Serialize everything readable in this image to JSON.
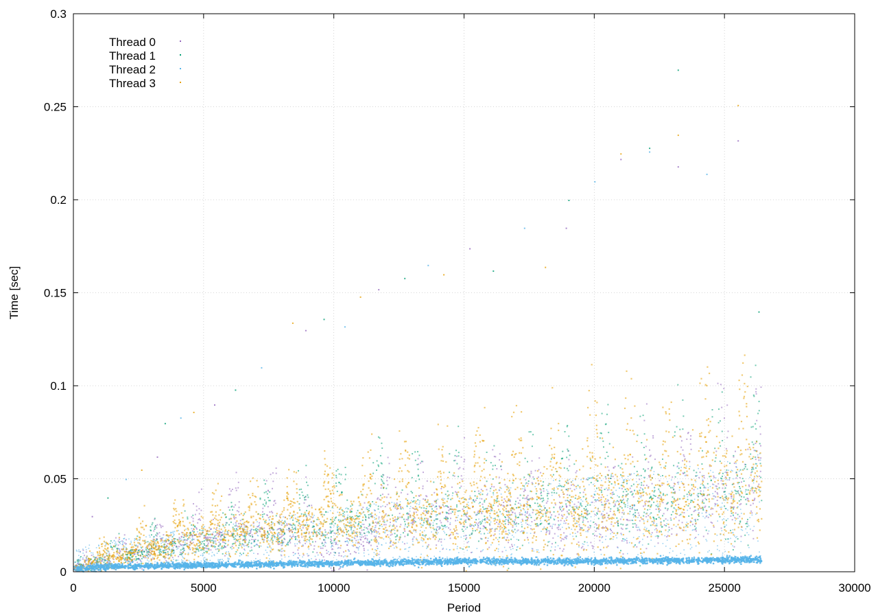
{
  "chart_data": {
    "type": "scatter",
    "title": "",
    "xlabel": "Period",
    "ylabel": "Time [sec]",
    "xlim": [
      0,
      30000
    ],
    "ylim": [
      0,
      0.3
    ],
    "x_ticks": [
      0,
      5000,
      10000,
      15000,
      20000,
      25000,
      30000
    ],
    "x_tick_labels": [
      "0",
      "5000",
      "10000",
      "15000",
      "20000",
      "25000",
      "30000"
    ],
    "y_ticks": [
      0,
      0.05,
      0.1,
      0.15,
      0.2,
      0.25,
      0.3
    ],
    "y_tick_labels": [
      "0",
      "0.05",
      "0.1",
      "0.15",
      "0.2",
      "0.25",
      "0.3"
    ],
    "grid": true,
    "legend_position": "top-left",
    "x_max_period": 26400,
    "series": [
      {
        "name": "Thread 0",
        "color": "#9467bd",
        "marker": "dot",
        "trend": [
          [
            0,
            0.002
          ],
          [
            2500,
            0.01
          ],
          [
            5000,
            0.018
          ],
          [
            7500,
            0.022
          ],
          [
            10000,
            0.012
          ],
          [
            12500,
            0.028
          ],
          [
            15000,
            0.03
          ],
          [
            17500,
            0.03
          ],
          [
            20000,
            0.025
          ],
          [
            22500,
            0.032
          ],
          [
            25000,
            0.04
          ],
          [
            26400,
            0.045
          ]
        ]
      },
      {
        "name": "Thread 1",
        "color": "#009e73",
        "marker": "plus",
        "trend": [
          [
            0,
            0.002
          ],
          [
            2500,
            0.01
          ],
          [
            5000,
            0.016
          ],
          [
            7500,
            0.02
          ],
          [
            10000,
            0.025
          ],
          [
            12500,
            0.03
          ],
          [
            15000,
            0.03
          ],
          [
            17500,
            0.032
          ],
          [
            20000,
            0.035
          ],
          [
            22500,
            0.038
          ],
          [
            25000,
            0.04
          ],
          [
            26400,
            0.042
          ]
        ]
      },
      {
        "name": "Thread 2",
        "color": "#56b4e9",
        "marker": "x",
        "trend": [
          [
            0,
            0.002
          ],
          [
            1000,
            0.003
          ],
          [
            5000,
            0.004
          ],
          [
            10000,
            0.005
          ],
          [
            15000,
            0.006
          ],
          [
            20000,
            0.006
          ],
          [
            26400,
            0.007
          ]
        ]
      },
      {
        "name": "Thread 3",
        "color": "#e69f00",
        "marker": "star",
        "trend": [
          [
            0,
            0.002
          ],
          [
            2500,
            0.011
          ],
          [
            5000,
            0.018
          ],
          [
            7500,
            0.022
          ],
          [
            10000,
            0.026
          ],
          [
            12500,
            0.028
          ],
          [
            15000,
            0.03
          ],
          [
            17500,
            0.033
          ],
          [
            20000,
            0.035
          ],
          [
            22500,
            0.037
          ],
          [
            25000,
            0.042
          ],
          [
            26400,
            0.045
          ]
        ]
      }
    ],
    "outliers": [
      [
        700,
        0.03
      ],
      [
        1300,
        0.04
      ],
      [
        2000,
        0.05
      ],
      [
        2600,
        0.055
      ],
      [
        3200,
        0.062
      ],
      [
        3500,
        0.08
      ],
      [
        4100,
        0.083
      ],
      [
        4600,
        0.086
      ],
      [
        5400,
        0.09
      ],
      [
        6200,
        0.098
      ],
      [
        7200,
        0.11
      ],
      [
        8400,
        0.134
      ],
      [
        8900,
        0.13
      ],
      [
        9600,
        0.136
      ],
      [
        10400,
        0.132
      ],
      [
        11000,
        0.148
      ],
      [
        11700,
        0.152
      ],
      [
        12700,
        0.158
      ],
      [
        13600,
        0.165
      ],
      [
        14200,
        0.16
      ],
      [
        15200,
        0.174
      ],
      [
        16100,
        0.162
      ],
      [
        17300,
        0.185
      ],
      [
        18100,
        0.164
      ],
      [
        18900,
        0.185
      ],
      [
        19000,
        0.2
      ],
      [
        20000,
        0.21
      ],
      [
        21000,
        0.225
      ],
      [
        21000,
        0.222
      ],
      [
        22100,
        0.228
      ],
      [
        22100,
        0.226
      ],
      [
        23200,
        0.235
      ],
      [
        23200,
        0.218
      ],
      [
        23200,
        0.27
      ],
      [
        24300,
        0.214
      ],
      [
        25500,
        0.251
      ],
      [
        25500,
        0.232
      ],
      [
        26300,
        0.14
      ]
    ]
  }
}
